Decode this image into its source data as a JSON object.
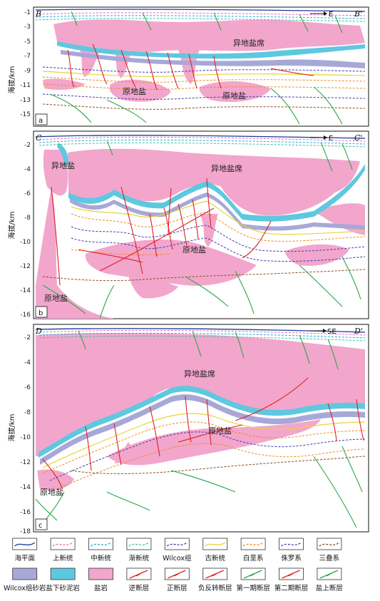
{
  "panels": [
    {
      "id": "a",
      "left": "B",
      "right": "B'",
      "direction": "E",
      "y_ticks": [
        "-1",
        "-3",
        "-5",
        "-7",
        "-9",
        "-11",
        "-13",
        "-15"
      ],
      "labels": {
        "allochthonous_canopy": "异地盐席",
        "autochthonous_1": "原地盐",
        "autochthonous_2": "原地盐"
      }
    },
    {
      "id": "b",
      "left": "C",
      "right": "C'",
      "direction": "E",
      "y_ticks": [
        "-2",
        "-4",
        "-6",
        "-8",
        "-10",
        "-12",
        "-14",
        "-16"
      ],
      "labels": {
        "allochthonous_left": "异地盐",
        "allochthonous_canopy": "异地盐席",
        "autochthonous_1": "原地盐",
        "autochthonous_2": "原地盐"
      }
    },
    {
      "id": "c",
      "left": "D",
      "right": "D'",
      "direction": "SE",
      "y_ticks": [
        "-2",
        "-4",
        "-6",
        "-8",
        "-10",
        "-12",
        "-14",
        "-16",
        "-18"
      ],
      "labels": {
        "allochthonous_canopy": "异地盐席",
        "autochthonous_1": "原地盐",
        "autochthonous_2": "原地盐"
      }
    }
  ],
  "y_axis_label": "海拔/km",
  "legend": [
    {
      "name": "海平面",
      "style": "line",
      "color": "#1a3a9a",
      "dash": false
    },
    {
      "name": "上新统",
      "style": "line",
      "color": "#e06ab8",
      "dash": true
    },
    {
      "name": "中新统",
      "style": "line",
      "color": "#23a9d6",
      "dash": true
    },
    {
      "name": "渐新统",
      "style": "line",
      "color": "#3fbfa6",
      "dash": true
    },
    {
      "name": "Wilcox组",
      "style": "line",
      "color": "#3a3ab0",
      "dash": true
    },
    {
      "name": "古新统",
      "style": "line",
      "color": "#e8d23a",
      "dash": false
    },
    {
      "name": "白垩系",
      "style": "line",
      "color": "#f08a1c",
      "dash": true
    },
    {
      "name": "侏罗系",
      "style": "line",
      "color": "#4a3aa8",
      "dash": true
    },
    {
      "name": "三叠系",
      "style": "line",
      "color": "#8a4a1a",
      "dash": true
    },
    {
      "name": "Wilcox组砂岩",
      "style": "fill",
      "color": "#a8a8d8"
    },
    {
      "name": "盐下砂泥岩",
      "style": "fill",
      "color": "#5ec8e0"
    },
    {
      "name": "盐岩",
      "style": "fill",
      "color": "#f2a6cc"
    },
    {
      "name": "逆断层",
      "style": "fault",
      "color": "#e02020"
    },
    {
      "name": "正断层",
      "style": "fault",
      "color": "#e02020"
    },
    {
      "name": "负反转断层",
      "style": "fault",
      "color": "#e02020"
    },
    {
      "name": "第一期断层",
      "style": "fault",
      "color": "#2aa848"
    },
    {
      "name": "第二期断层",
      "style": "fault",
      "color": "#e02020"
    },
    {
      "name": "盐上断层",
      "style": "fault",
      "color": "#2aa848"
    }
  ],
  "colors": {
    "salt": "#f2a6cc",
    "subsalt": "#5ec8e0",
    "wilcox_sand": "#a8a8d8",
    "red_fault": "#e02020",
    "green_fault": "#2aa848",
    "sea_level": "#1a3a9a"
  }
}
